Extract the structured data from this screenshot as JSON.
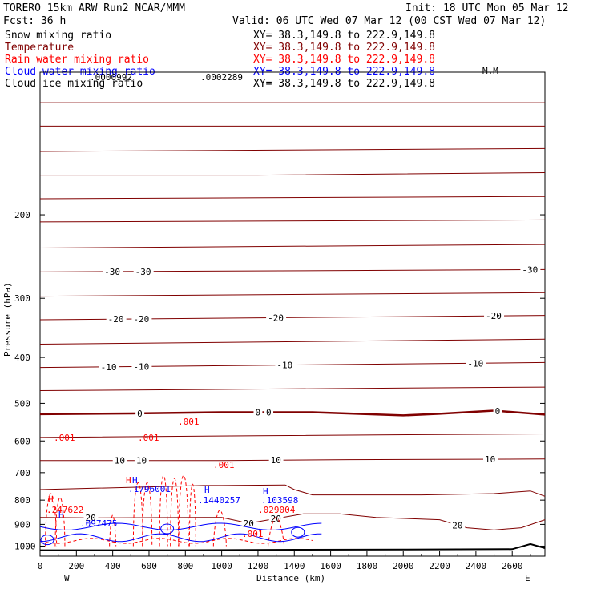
{
  "header": {
    "model": "TORERO  15km ARW   Run2   NCAR/MMM",
    "init": "Init: 18 UTC Mon 05 Mar 12",
    "fcst": "Fcst:   36 h",
    "valid": "Valid: 06 UTC Wed 07 Mar 12 (00 CST Wed 07 Mar 12)"
  },
  "fields": [
    {
      "name": "Snow mixing ratio",
      "xy": "XY=  38.3,149.8 to 222.9,149.8",
      "color": "#000000"
    },
    {
      "name": "Temperature",
      "xy": "XY=  38.3,149.8 to 222.9,149.8",
      "color": "#800000"
    },
    {
      "name": "Rain water mixing ratio",
      "xy": "XY=  38.3,149.8 to 222.9,149.8",
      "color": "#ff0000"
    },
    {
      "name": "Cloud water mixing ratio",
      "xy": "XY=  38.3,149.8 to 222.9,149.8",
      "color": "#0000ff"
    },
    {
      "name": "Cloud ice mixing ratio",
      "xy": "XY=  38.3,149.8 to 222.9,149.8",
      "color": "#000000"
    }
  ],
  "colors": {
    "temperature": "#800000",
    "rain": "#ff0000",
    "cloud_water": "#0000ff",
    "cloud_ice": "#000000",
    "terrain": "#000000"
  },
  "chart_data": {
    "type": "line",
    "xlabel": "Distance (km)",
    "ylabel": "Pressure (hPa)",
    "xlim": [
      0,
      2780
    ],
    "ylim": [
      1050,
      100
    ],
    "x_ticks": [
      0,
      200,
      400,
      600,
      800,
      1000,
      1200,
      1400,
      1600,
      1800,
      2000,
      2200,
      2400,
      2600
    ],
    "y_ticks": [
      200,
      300,
      400,
      500,
      600,
      700,
      800,
      900,
      1000
    ],
    "y_scale": "log",
    "end_labels": {
      "left": "W",
      "right": "E"
    },
    "temperature_isotherms": [
      {
        "value": -65,
        "labels": [],
        "points": [
          [
            0,
            116
          ],
          [
            2780,
            116
          ]
        ]
      },
      {
        "value": -60,
        "labels": [],
        "points": [
          [
            0,
            130
          ],
          [
            2780,
            130
          ]
        ]
      },
      {
        "value": -55,
        "labels": [],
        "points": [
          [
            0,
            147
          ],
          [
            2780,
            145
          ]
        ]
      },
      {
        "value": -50,
        "labels": [],
        "points": [
          [
            0,
            165
          ],
          [
            1200,
            165
          ],
          [
            2780,
            163
          ]
        ]
      },
      {
        "value": -45,
        "labels": [],
        "points": [
          [
            0,
            185
          ],
          [
            2780,
            183
          ]
        ]
      },
      {
        "value": -40,
        "labels": [],
        "points": [
          [
            0,
            207
          ],
          [
            2780,
            205
          ]
        ]
      },
      {
        "value": -35,
        "labels": [],
        "points": [
          [
            0,
            235
          ],
          [
            2780,
            231
          ]
        ]
      },
      {
        "value": -30,
        "labels": [
          "-30"
        ],
        "label_x": [
          400,
          570,
          2700
        ],
        "points": [
          [
            0,
            264
          ],
          [
            2780,
            261
          ]
        ]
      },
      {
        "value": -25,
        "labels": [],
        "points": [
          [
            0,
            297
          ],
          [
            2780,
            292
          ]
        ]
      },
      {
        "value": -20,
        "labels": [
          "-20"
        ],
        "label_x": [
          420,
          560,
          1300,
          2500
        ],
        "points": [
          [
            0,
            333
          ],
          [
            2780,
            326
          ]
        ]
      },
      {
        "value": -15,
        "labels": [],
        "points": [
          [
            0,
            375
          ],
          [
            2780,
            366
          ]
        ]
      },
      {
        "value": -10,
        "labels": [
          "-10"
        ],
        "label_x": [
          380,
          560,
          1350,
          2400
        ],
        "points": [
          [
            0,
            420
          ],
          [
            2780,
            410
          ]
        ]
      },
      {
        "value": -5,
        "labels": [],
        "points": [
          [
            0,
            470
          ],
          [
            2780,
            462
          ]
        ]
      },
      {
        "value": 0,
        "labels": [
          "0"
        ],
        "label_x": [
          550,
          1200,
          1260,
          2520
        ],
        "points": [
          [
            0,
            527
          ],
          [
            500,
            525
          ],
          [
            1000,
            522
          ],
          [
            1500,
            522
          ],
          [
            2000,
            530
          ],
          [
            2200,
            526
          ],
          [
            2500,
            518
          ],
          [
            2780,
            528
          ]
        ]
      },
      {
        "value": 5,
        "labels": [],
        "points": [
          [
            0,
            590
          ],
          [
            1200,
            585
          ],
          [
            2780,
            580
          ]
        ]
      },
      {
        "value": 10,
        "labels": [
          "10"
        ],
        "label_x": [
          440,
          560,
          1300,
          2480
        ],
        "points": [
          [
            0,
            660
          ],
          [
            1000,
            660
          ],
          [
            1700,
            657
          ],
          [
            2780,
            655
          ]
        ]
      },
      {
        "value": 15,
        "labels": [],
        "points": [
          [
            0,
            760
          ],
          [
            900,
            745
          ],
          [
            1000,
            745
          ],
          [
            1350,
            743
          ],
          [
            1400,
            760
          ],
          [
            1500,
            780
          ],
          [
            2100,
            780
          ],
          [
            2500,
            775
          ],
          [
            2700,
            765
          ],
          [
            2780,
            785
          ]
        ]
      },
      {
        "value": 20,
        "labels": [
          "20"
        ],
        "label_x": [
          280,
          1150,
          1300,
          2300
        ],
        "points": [
          [
            0,
            870
          ],
          [
            300,
            872
          ],
          [
            1000,
            870
          ],
          [
            1150,
            895
          ],
          [
            1450,
            855
          ],
          [
            1650,
            855
          ],
          [
            1850,
            870
          ],
          [
            2200,
            880
          ],
          [
            2350,
            915
          ],
          [
            2500,
            925
          ],
          [
            2650,
            915
          ],
          [
            2780,
            880
          ]
        ]
      }
    ],
    "rain_contour_labels": [
      ".001",
      ".001",
      ".001",
      ".001",
      ".001",
      ".247622",
      ".029004"
    ],
    "cloud_water_labels": [
      ".097475",
      ".1796001",
      ".1440257",
      ".103598"
    ],
    "cloud_ice_label": ".0002289",
    "snow_label": ".0000992",
    "max_markers": [
      "H",
      "H",
      "H",
      "H",
      "H",
      "H"
    ],
    "terrain": [
      [
        0,
        1020
      ],
      [
        800,
        1020
      ],
      [
        1400,
        1018
      ],
      [
        2000,
        1017
      ],
      [
        2600,
        1015
      ],
      [
        2700,
        990
      ],
      [
        2780,
        1010
      ]
    ]
  },
  "annotations": {
    "snow_val": ".0000992",
    "ice_val": ".0002289",
    "rain_labels": [
      ".001",
      ".001",
      ".001",
      ".001",
      ".001"
    ],
    "cw_vals": [
      ".097475",
      ".1796001",
      ".1440257",
      ".103598"
    ],
    "rain_vals": [
      ".247622",
      ".029004"
    ],
    "H": "H",
    "mark_mc": "M.M"
  }
}
